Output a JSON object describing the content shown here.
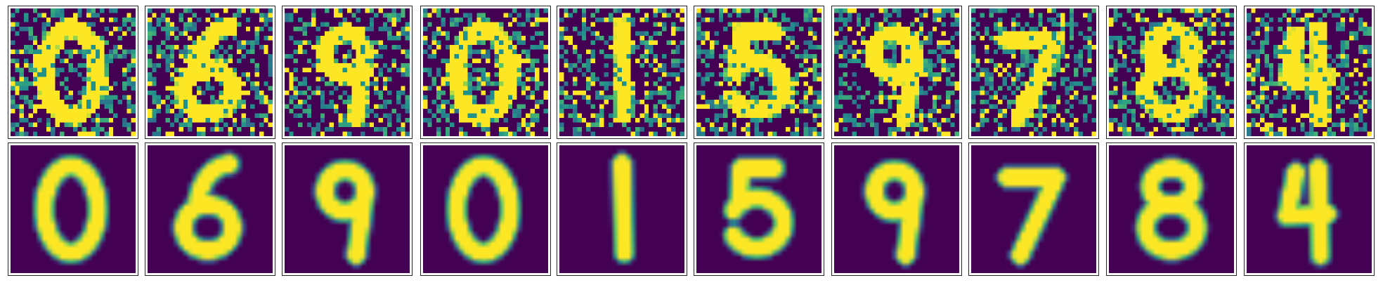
{
  "figure": {
    "rows": [
      {
        "key": "noisy",
        "label": "",
        "rendering": "pixelated",
        "noise_level": 0.75
      },
      {
        "key": "reconstructed",
        "label": "",
        "rendering": "smooth",
        "noise_level": 0
      }
    ],
    "digits": [
      0,
      6,
      9,
      0,
      1,
      5,
      9,
      7,
      8,
      4
    ],
    "colormap": "viridis",
    "colors": {
      "background": "#440154",
      "low": "#3b528b",
      "mid": "#21918c",
      "high": "#5ec962",
      "peak": "#fde725",
      "frame": "#262626"
    },
    "image_resolution": 28
  }
}
